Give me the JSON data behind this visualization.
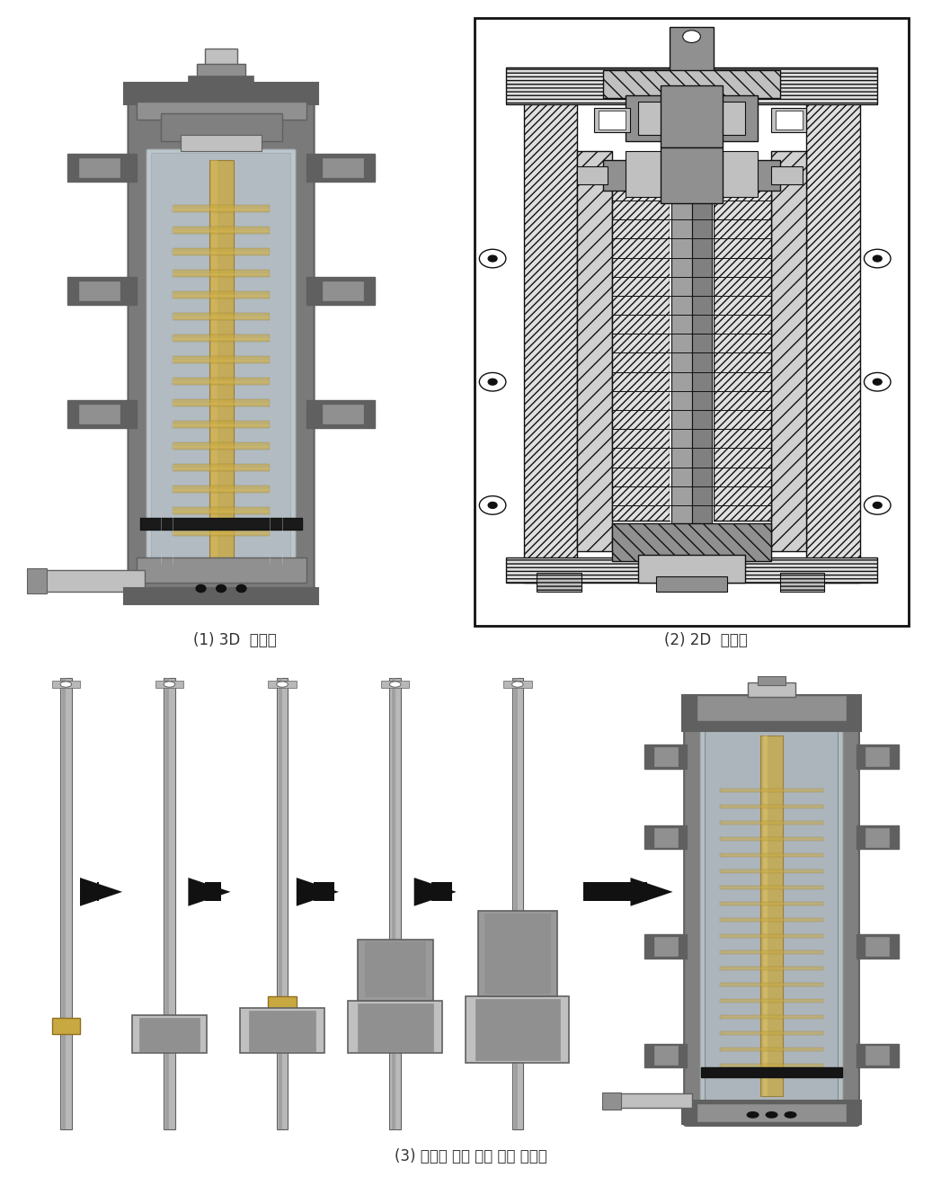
{
  "fig_width": 10.47,
  "fig_height": 13.19,
  "dpi": 100,
  "bg_color": "#ffffff",
  "caption1": "(1) 3D  모델링",
  "caption2": "(2) 2D  내부도",
  "caption3": "(3) 디스크 스택 적용 조립 순서도",
  "caption_fontsize": 12,
  "caption_color": "#333333",
  "gray_light": "#b8b8b8",
  "gray_med": "#909090",
  "gray_dark": "#606060",
  "gray_bg": "#d0d0d0",
  "gold_color": "#c8a840",
  "steel_light": "#c0c0c0",
  "steel_dark": "#787878",
  "glass_color": "#d8e8f0",
  "black": "#111111",
  "white": "#ffffff"
}
